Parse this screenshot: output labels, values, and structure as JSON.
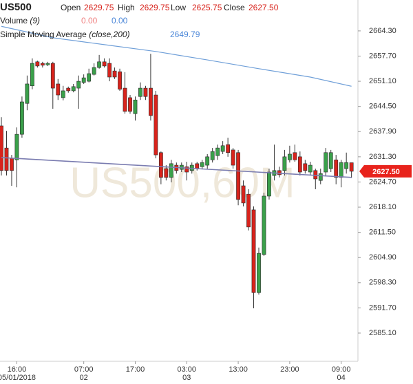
{
  "header": {
    "symbol": "US500",
    "open_label": "Open",
    "open": "2629.75",
    "high_label": "High",
    "high": "2629.75",
    "low_label": "Low",
    "low": "2625.75",
    "close_label": "Close",
    "close": "2627.50",
    "volume_label": "Volume",
    "volume_param": "(9)",
    "volume_value_1": "0.00",
    "volume_value_2": "0.00",
    "sma_label": "Simple Moving Average",
    "sma_param": "(close,200)",
    "sma_value": "2649.79",
    "watermark": "US500,60M"
  },
  "chart_data": {
    "type": "candlestick",
    "up_color": "#3aa04a",
    "down_color": "#d8231c",
    "categories": [
      null,
      null,
      null,
      "16:00",
      null,
      null,
      null,
      null,
      null,
      null,
      null,
      null,
      null,
      null,
      null,
      null,
      "07:00",
      null,
      null,
      null,
      null,
      null,
      null,
      null,
      null,
      null,
      "17:00",
      null,
      null,
      null,
      null,
      null,
      null,
      null,
      null,
      null,
      "03:00",
      null,
      null,
      null,
      null,
      null,
      null,
      null,
      null,
      null,
      "13:00",
      null,
      null,
      null,
      null,
      null,
      null,
      null,
      null,
      null,
      "23:00",
      null,
      null,
      null,
      null,
      null,
      null,
      null,
      null,
      null,
      "09:00",
      null,
      null
    ],
    "category_sublabels": [
      null,
      null,
      null,
      "05/01/2018",
      null,
      null,
      null,
      null,
      null,
      null,
      null,
      null,
      null,
      null,
      null,
      null,
      "02",
      null,
      null,
      null,
      null,
      null,
      null,
      null,
      null,
      null,
      null,
      null,
      null,
      null,
      null,
      null,
      null,
      null,
      null,
      null,
      "03",
      null,
      null,
      null,
      null,
      null,
      null,
      null,
      null,
      null,
      null,
      null,
      null,
      null,
      null,
      null,
      null,
      null,
      null,
      null,
      null,
      null,
      null,
      null,
      null,
      null,
      null,
      null,
      null,
      null,
      "04",
      null,
      null
    ],
    "open": [
      2639.4,
      2633.6,
      2630.9,
      2630.5,
      2637.2,
      2645.3,
      2649.9,
      2656.2,
      2655.8,
      2655.4,
      2655.8,
      2650.4,
      2646.8,
      2649.3,
      2648.6,
      2649.3,
      2650.8,
      2651.1,
      2652.9,
      2654.7,
      2656.2,
      2655.8,
      2653.8,
      2653.6,
      2649.3,
      2646.8,
      2642.6,
      2647.1,
      2649.3,
      2649.3,
      2647.5,
      2632.4,
      2628.2,
      2625.9,
      2629.1,
      2628.0,
      2628.7,
      2627.7,
      2629.5,
      2628.7,
      2629.1,
      2630.5,
      2631.6,
      2632.7,
      2634.5,
      2633.1,
      2632.4,
      2623.7,
      2621.5,
      2617.4,
      2595.7,
      2605.7,
      2621.0,
      2626.4,
      2627.7,
      2627.7,
      2630.5,
      2632.4,
      2631.3,
      2629.5,
      2627.3,
      2627.7,
      2625.1,
      2627.3,
      2628.2,
      2630.5,
      2625.9,
      2628.2,
      2629.75
    ],
    "high": [
      2641.7,
      2638.1,
      2631.8,
      2639.0,
      2647.1,
      2652.6,
      2657.1,
      2656.5,
      2656.2,
      2656.2,
      2656.2,
      2651.7,
      2649.9,
      2649.7,
      2650.4,
      2652.6,
      2652.9,
      2654.4,
      2655.8,
      2658.0,
      2657.1,
      2657.1,
      2654.7,
      2654.4,
      2653.5,
      2647.5,
      2647.1,
      2650.8,
      2649.9,
      2658.3,
      2648.6,
      2632.7,
      2629.1,
      2630.5,
      2629.8,
      2629.8,
      2630.0,
      2629.8,
      2630.0,
      2630.5,
      2632.0,
      2633.6,
      2634.5,
      2635.4,
      2636.3,
      2633.6,
      2633.1,
      2625.1,
      2622.8,
      2618.3,
      2607.5,
      2621.9,
      2628.2,
      2634.5,
      2628.7,
      2633.1,
      2634.2,
      2634.5,
      2632.7,
      2630.5,
      2630.0,
      2628.2,
      2628.2,
      2633.6,
      2633.1,
      2631.8,
      2630.5,
      2632.4,
      2629.75
    ],
    "low": [
      2626.4,
      2626.4,
      2623.7,
      2623.3,
      2636.3,
      2643.5,
      2649.0,
      2654.7,
      2654.7,
      2655.1,
      2643.9,
      2646.2,
      2646.1,
      2648.1,
      2648.2,
      2643.9,
      2650.4,
      2650.8,
      2652.6,
      2654.4,
      2654.7,
      2651.1,
      2651.7,
      2648.6,
      2642.6,
      2642.6,
      2640.8,
      2646.2,
      2646.2,
      2640.8,
      2630.9,
      2624.1,
      2625.1,
      2624.6,
      2626.9,
      2627.3,
      2625.1,
      2626.9,
      2627.7,
      2628.0,
      2628.2,
      2629.8,
      2630.5,
      2632.0,
      2631.3,
      2628.2,
      2618.6,
      2618.3,
      2612.0,
      2591.6,
      2595.2,
      2605.3,
      2620.1,
      2625.1,
      2625.9,
      2626.4,
      2629.8,
      2630.0,
      2626.4,
      2626.9,
      2626.4,
      2622.8,
      2624.1,
      2626.4,
      2627.3,
      2624.1,
      2623.3,
      2626.9,
      2625.75
    ],
    "close": [
      2627.7,
      2627.7,
      2627.7,
      2637.2,
      2645.7,
      2650.4,
      2655.8,
      2655.1,
      2655.3,
      2655.8,
      2649.3,
      2647.5,
      2648.6,
      2648.6,
      2649.7,
      2651.1,
      2652.0,
      2653.1,
      2654.7,
      2656.2,
      2655.1,
      2652.2,
      2652.2,
      2649.0,
      2643.2,
      2643.2,
      2646.2,
      2649.3,
      2647.1,
      2642.1,
      2631.8,
      2625.9,
      2625.9,
      2629.5,
      2627.7,
      2629.1,
      2627.3,
      2629.1,
      2628.2,
      2629.8,
      2631.3,
      2632.7,
      2633.6,
      2634.2,
      2632.4,
      2629.1,
      2620.1,
      2619.2,
      2612.9,
      2595.7,
      2606.0,
      2621.0,
      2627.3,
      2627.7,
      2626.6,
      2631.3,
      2632.0,
      2630.5,
      2627.3,
      2627.7,
      2629.1,
      2625.5,
      2626.9,
      2632.4,
      2632.4,
      2625.9,
      2629.8,
      2629.8,
      2627.5
    ],
    "sma": {
      "color": "#6f9fd8",
      "x": [
        0,
        10,
        20,
        30,
        40,
        50,
        60,
        68
      ],
      "values": [
        2665.5,
        2662.5,
        2660.7,
        2658.9,
        2656.7,
        2654.4,
        2652.2,
        2649.79
      ]
    },
    "trendline": {
      "color": "#7a7cb0",
      "x": [
        0,
        68
      ],
      "values": [
        2631.1,
        2625.9
      ]
    },
    "last_price": {
      "value": 2627.5,
      "label": "2627.50",
      "color": "#e8231c"
    },
    "ylim": [
      2577.7,
      2672.4
    ],
    "yticks": [
      {
        "value": 2664.3,
        "label": "2664.30"
      },
      {
        "value": 2657.7,
        "label": "2657.70"
      },
      {
        "value": 2651.1,
        "label": "2651.10"
      },
      {
        "value": 2644.5,
        "label": "2644.50"
      },
      {
        "value": 2637.9,
        "label": "2637.90"
      },
      {
        "value": 2631.3,
        "label": "2631.30"
      },
      {
        "value": 2624.7,
        "label": "2624.70"
      },
      {
        "value": 2618.1,
        "label": "2618.10"
      },
      {
        "value": 2611.5,
        "label": "2611.50"
      },
      {
        "value": 2604.9,
        "label": "2604.90"
      },
      {
        "value": 2598.3,
        "label": "2598.30"
      },
      {
        "value": 2591.7,
        "label": "2591.70"
      },
      {
        "value": 2585.1,
        "label": "2585.10"
      }
    ]
  }
}
